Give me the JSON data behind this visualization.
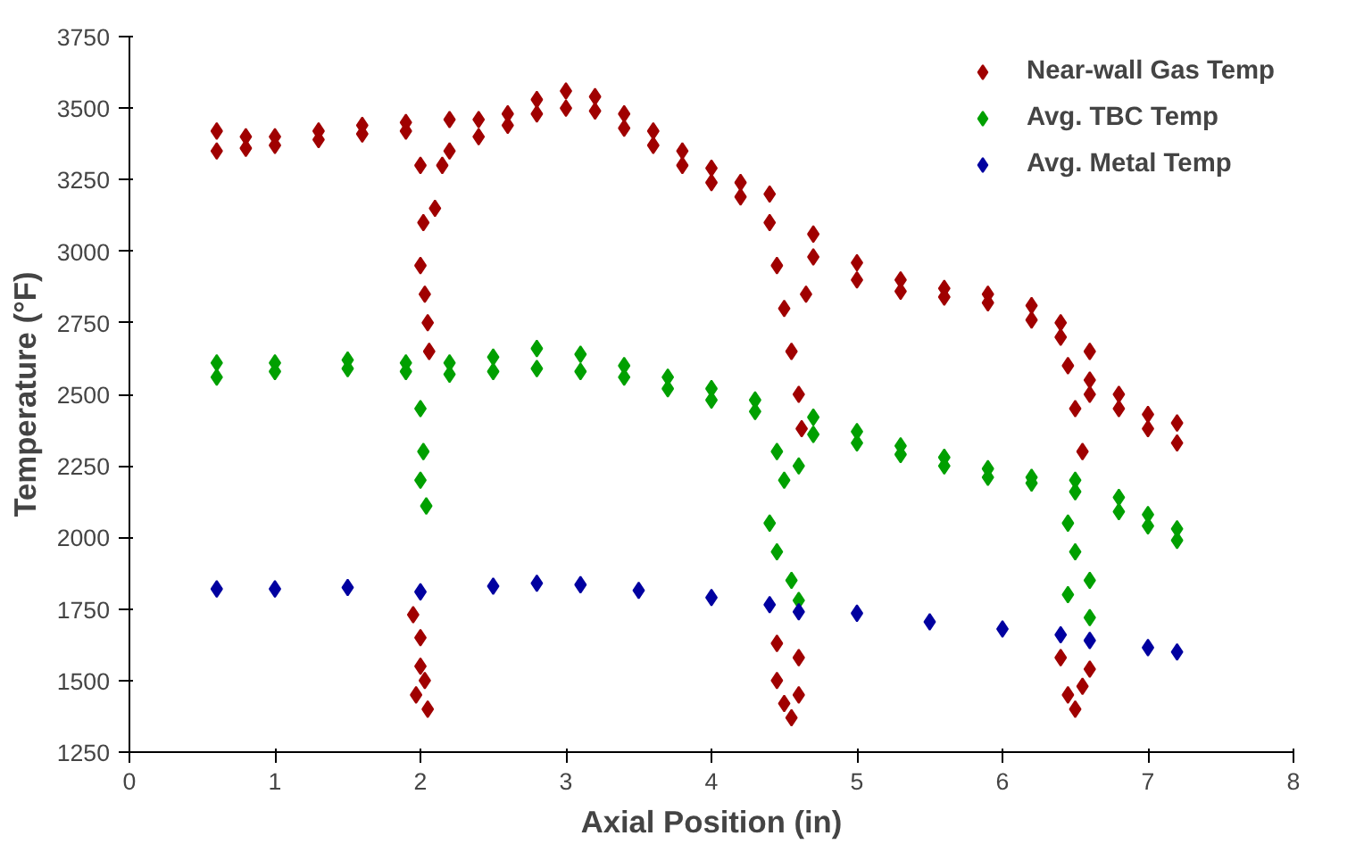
{
  "chart_data": {
    "type": "scatter",
    "xlabel": "Axial Position (in)",
    "ylabel": "Temperature (°F)",
    "xlim": [
      0,
      8
    ],
    "ylim": [
      1250,
      3750
    ],
    "xticks": [
      0,
      1,
      2,
      3,
      4,
      5,
      6,
      7,
      8
    ],
    "yticks": [
      1250,
      1500,
      1750,
      2000,
      2250,
      2500,
      2750,
      3000,
      3250,
      3500,
      3750
    ],
    "grid": false,
    "legend": "top right",
    "marker": "diamond",
    "series": [
      {
        "name": "Near-wall Gas Temp",
        "color": "#a00000",
        "x": [
          0.6,
          0.6,
          0.8,
          0.8,
          1.0,
          1.0,
          1.3,
          1.3,
          1.6,
          1.6,
          1.9,
          1.9,
          2.2,
          2.2,
          2.4,
          2.4,
          2.6,
          2.6,
          2.8,
          2.8,
          3.0,
          3.0,
          3.2,
          3.2,
          3.4,
          3.4,
          3.6,
          3.6,
          3.8,
          3.8,
          4.0,
          4.0,
          4.2,
          4.2,
          4.4,
          4.4,
          4.7,
          4.7,
          5.0,
          5.0,
          5.3,
          5.3,
          5.6,
          5.6,
          5.9,
          5.9,
          6.2,
          6.2,
          6.4,
          6.4,
          6.6,
          6.6,
          6.8,
          6.8,
          7.0,
          7.0,
          7.2,
          7.2,
          2.0,
          2.02,
          2.0,
          2.03,
          2.05,
          2.06,
          2.1,
          2.15,
          4.45,
          4.5,
          4.55,
          4.6,
          4.62,
          4.65,
          6.45,
          6.5,
          6.55,
          6.6,
          1.95,
          2.0,
          2.0,
          1.97,
          2.05,
          2.03,
          4.45,
          4.45,
          4.5,
          4.55,
          4.6,
          4.6,
          6.4,
          6.45,
          6.5,
          6.55,
          6.6
        ],
        "values": [
          3420,
          3350,
          3400,
          3360,
          3400,
          3370,
          3420,
          3390,
          3440,
          3410,
          3450,
          3420,
          3460,
          3350,
          3460,
          3400,
          3480,
          3440,
          3530,
          3480,
          3560,
          3500,
          3540,
          3490,
          3480,
          3430,
          3420,
          3370,
          3350,
          3300,
          3290,
          3240,
          3240,
          3190,
          3200,
          3100,
          3060,
          2980,
          2960,
          2900,
          2900,
          2860,
          2870,
          2840,
          2850,
          2820,
          2810,
          2760,
          2750,
          2700,
          2650,
          2550,
          2500,
          2450,
          2430,
          2380,
          2400,
          2330,
          3300,
          3100,
          2950,
          2850,
          2750,
          2650,
          3150,
          3300,
          2950,
          2800,
          2650,
          2500,
          2380,
          2850,
          2600,
          2450,
          2300,
          2500,
          1730,
          1650,
          1550,
          1450,
          1400,
          1500,
          1630,
          1500,
          1420,
          1370,
          1450,
          1580,
          1580,
          1450,
          1400,
          1480,
          1540
        ]
      },
      {
        "name": "Avg. TBC Temp",
        "color": "#00a000",
        "x": [
          0.6,
          0.6,
          1.0,
          1.0,
          1.5,
          1.5,
          1.9,
          1.9,
          2.2,
          2.2,
          2.5,
          2.5,
          2.8,
          2.8,
          3.1,
          3.1,
          3.4,
          3.4,
          3.7,
          3.7,
          4.0,
          4.0,
          4.3,
          4.3,
          4.7,
          4.7,
          5.0,
          5.0,
          5.3,
          5.3,
          5.6,
          5.6,
          5.9,
          5.9,
          6.2,
          6.2,
          6.5,
          6.5,
          6.8,
          6.8,
          7.0,
          7.0,
          7.2,
          7.2,
          2.0,
          2.02,
          2.0,
          2.04,
          4.45,
          4.5,
          4.6,
          4.4,
          4.45,
          4.55,
          4.6,
          6.45,
          6.5,
          6.6,
          6.45,
          6.6
        ],
        "values": [
          2610,
          2560,
          2610,
          2580,
          2620,
          2590,
          2610,
          2580,
          2610,
          2570,
          2630,
          2580,
          2660,
          2590,
          2640,
          2580,
          2600,
          2560,
          2560,
          2520,
          2520,
          2480,
          2480,
          2440,
          2420,
          2360,
          2370,
          2330,
          2320,
          2290,
          2280,
          2250,
          2240,
          2210,
          2210,
          2190,
          2200,
          2160,
          2140,
          2090,
          2080,
          2040,
          2030,
          1990,
          2450,
          2300,
          2200,
          2110,
          2300,
          2200,
          2250,
          2050,
          1950,
          1850,
          1780,
          2050,
          1950,
          1850,
          1800,
          1720
        ]
      },
      {
        "name": "Avg. Metal Temp",
        "color": "#0000a0",
        "x": [
          0.6,
          1.0,
          1.5,
          2.0,
          2.5,
          2.8,
          3.1,
          3.5,
          4.0,
          4.4,
          4.6,
          5.0,
          5.5,
          6.0,
          6.4,
          6.6,
          7.0,
          7.2
        ],
        "values": [
          1820,
          1820,
          1825,
          1810,
          1830,
          1840,
          1835,
          1815,
          1790,
          1765,
          1740,
          1735,
          1705,
          1680,
          1660,
          1640,
          1615,
          1600
        ]
      }
    ]
  }
}
